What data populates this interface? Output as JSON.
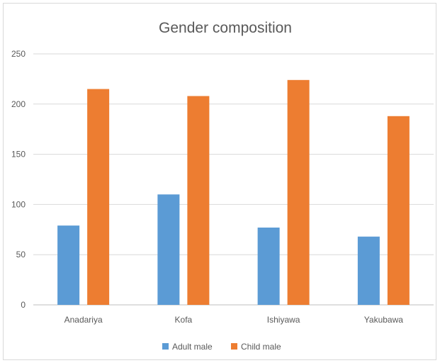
{
  "chart_data": {
    "type": "bar",
    "title": "Gender composition",
    "categories": [
      "Anadariya",
      "Kofa",
      "Ishiyawa",
      "Yakubawa"
    ],
    "series": [
      {
        "name": "Adult male",
        "values": [
          79,
          110,
          77,
          68
        ],
        "color": "#5b9bd5"
      },
      {
        "name": "Child male",
        "values": [
          215,
          208,
          224,
          188
        ],
        "color": "#ed7d31"
      }
    ],
    "yticks": [
      "0",
      "50",
      "100",
      "150",
      "200",
      "250"
    ],
    "ylim": [
      0,
      250
    ],
    "grid": true,
    "legend": "bottom"
  }
}
